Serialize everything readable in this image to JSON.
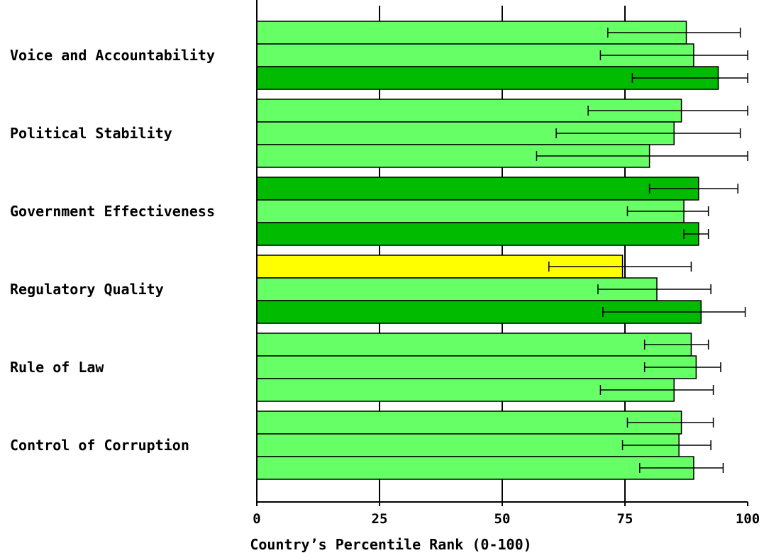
{
  "chart_data": {
    "type": "bar",
    "orientation": "horizontal",
    "title": "",
    "xlabel": "Country’s Percentile Rank (0-100)",
    "ylabel": "",
    "xlim": [
      0,
      100
    ],
    "xticks": [
      "0",
      "25",
      "50",
      "75",
      "100"
    ],
    "grid": "vertical gridlines at 25, 50, 75",
    "legend": "none",
    "colors": {
      "light_green": "#66ff66",
      "dark_green": "#00bb00",
      "yellow": "#ffff00",
      "error_bar": "#000000"
    },
    "categories": [
      {
        "label": "Voice and Accountability",
        "bars": [
          {
            "value": 87.5,
            "low": 71.5,
            "high": 98.5,
            "color": "light_green"
          },
          {
            "value": 89.0,
            "low": 70.0,
            "high": 100.0,
            "color": "light_green"
          },
          {
            "value": 94.0,
            "low": 76.5,
            "high": 100.0,
            "color": "dark_green"
          }
        ]
      },
      {
        "label": "Political Stability",
        "bars": [
          {
            "value": 86.5,
            "low": 67.5,
            "high": 100.0,
            "color": "light_green"
          },
          {
            "value": 85.0,
            "low": 61.0,
            "high": 98.5,
            "color": "light_green"
          },
          {
            "value": 80.0,
            "low": 57.0,
            "high": 100.0,
            "color": "light_green"
          }
        ]
      },
      {
        "label": "Government Effectiveness",
        "bars": [
          {
            "value": 90.0,
            "low": 80.0,
            "high": 98.0,
            "color": "dark_green"
          },
          {
            "value": 87.0,
            "low": 75.5,
            "high": 92.0,
            "color": "light_green"
          },
          {
            "value": 90.0,
            "low": 87.0,
            "high": 92.0,
            "color": "dark_green"
          }
        ]
      },
      {
        "label": "Regulatory Quality",
        "bars": [
          {
            "value": 74.5,
            "low": 59.5,
            "high": 88.5,
            "color": "yellow"
          },
          {
            "value": 81.5,
            "low": 69.5,
            "high": 92.5,
            "color": "light_green"
          },
          {
            "value": 90.5,
            "low": 70.5,
            "high": 99.5,
            "color": "dark_green"
          }
        ]
      },
      {
        "label": "Rule of Law",
        "bars": [
          {
            "value": 88.5,
            "low": 79.0,
            "high": 92.0,
            "color": "light_green"
          },
          {
            "value": 89.5,
            "low": 79.0,
            "high": 94.5,
            "color": "light_green"
          },
          {
            "value": 85.0,
            "low": 70.0,
            "high": 93.0,
            "color": "light_green"
          }
        ]
      },
      {
        "label": "Control of Corruption",
        "bars": [
          {
            "value": 86.5,
            "low": 75.5,
            "high": 93.0,
            "color": "light_green"
          },
          {
            "value": 86.0,
            "low": 74.5,
            "high": 92.5,
            "color": "light_green"
          },
          {
            "value": 89.0,
            "low": 78.0,
            "high": 95.0,
            "color": "light_green"
          }
        ]
      }
    ]
  }
}
